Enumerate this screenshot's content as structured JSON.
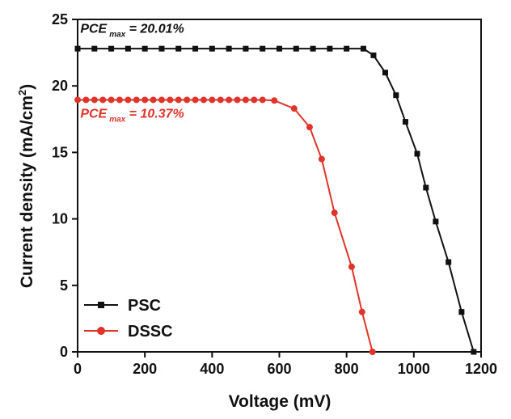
{
  "chart_data": {
    "type": "line",
    "x_label": "Voltage (mV)",
    "y_label": {
      "main": "Current density (mA/cm",
      "sup": "2",
      "end": ")"
    },
    "xlim": [
      0,
      1200
    ],
    "xticks": [
      0,
      200,
      400,
      600,
      800,
      1000,
      1200
    ],
    "ylim": [
      0,
      25
    ],
    "yticks": [
      0,
      5,
      10,
      15,
      20,
      25
    ],
    "legend": "lower left",
    "series": [
      {
        "name": "PSC",
        "color": "#111111",
        "marker": "square",
        "x": [
          0,
          50,
          100,
          150,
          200,
          250,
          300,
          350,
          400,
          450,
          500,
          550,
          600,
          650,
          700,
          750,
          800,
          850,
          880,
          915,
          947,
          975,
          1010,
          1036,
          1065,
          1103,
          1142,
          1178
        ],
        "values": [
          22.8,
          22.8,
          22.8,
          22.8,
          22.8,
          22.8,
          22.8,
          22.8,
          22.8,
          22.8,
          22.8,
          22.8,
          22.8,
          22.8,
          22.8,
          22.8,
          22.8,
          22.8,
          22.3,
          21.0,
          19.3,
          17.3,
          14.9,
          12.35,
          9.8,
          6.75,
          3.0,
          0
        ]
      },
      {
        "name": "DSSC",
        "color": "#e0332a",
        "marker": "circle",
        "x": [
          0,
          25,
          50,
          75,
          100,
          125,
          150,
          175,
          200,
          225,
          250,
          275,
          300,
          325,
          350,
          375,
          400,
          425,
          450,
          475,
          500,
          525,
          550,
          585,
          644,
          690,
          726,
          764,
          815,
          846,
          877
        ],
        "values": [
          18.95,
          18.95,
          18.95,
          18.95,
          18.95,
          18.95,
          18.95,
          18.95,
          18.95,
          18.95,
          18.95,
          18.95,
          18.95,
          18.95,
          18.95,
          18.95,
          18.95,
          18.95,
          18.95,
          18.95,
          18.95,
          18.95,
          18.95,
          18.9,
          18.3,
          16.9,
          14.5,
          10.46,
          6.4,
          3.0,
          0
        ]
      }
    ],
    "annotations": [
      {
        "main": "PCE",
        "sub": "max",
        "end": " = 20.01%",
        "color": "#111111",
        "x": 8,
        "y": 24.0
      },
      {
        "main": "PCE",
        "sub": "max",
        "end": " = 10.37%",
        "color": "#e0332a",
        "x": 8,
        "y": 17.6
      }
    ]
  }
}
